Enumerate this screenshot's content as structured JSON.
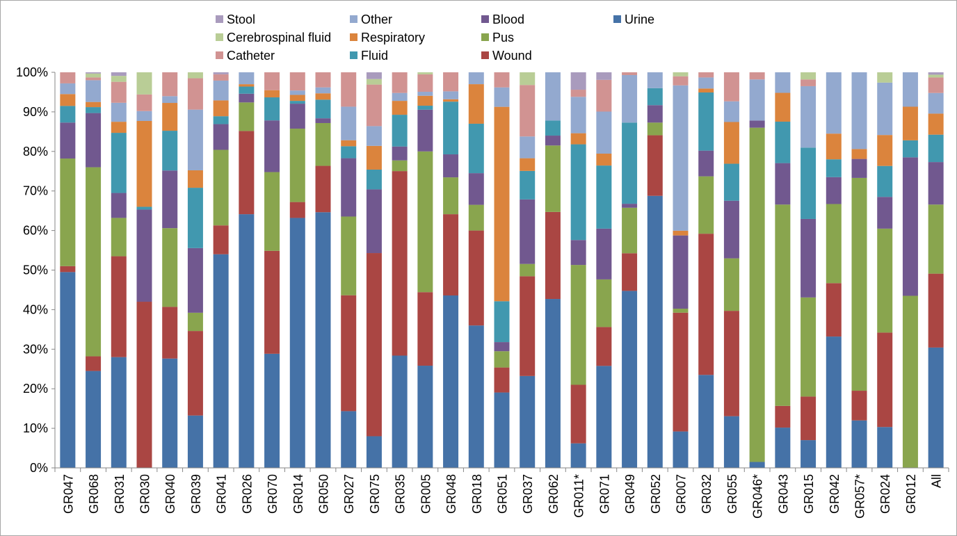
{
  "chart_data": {
    "type": "bar",
    "stacked": true,
    "normalized": true,
    "title": "",
    "xlabel": "",
    "ylabel": "",
    "ylim": [
      0,
      100
    ],
    "yticks": [
      "0%",
      "10%",
      "20%",
      "30%",
      "40%",
      "50%",
      "60%",
      "70%",
      "80%",
      "90%",
      "100%"
    ],
    "grid": false,
    "legend_position": "top",
    "categories": [
      "GR047",
      "GR068",
      "GR031",
      "GR030",
      "GR040",
      "GR039",
      "GR041",
      "GR026",
      "GR070",
      "GR014",
      "GR050",
      "GR027",
      "GR075",
      "GR035",
      "GR005",
      "GR048",
      "GR018",
      "GR051",
      "GR037",
      "GR062",
      "GR011*",
      "GR071",
      "GR049",
      "GR052",
      "GR007",
      "GR032",
      "GR055",
      "GR046*",
      "GR043",
      "GR015",
      "GR042",
      "GR057*",
      "GR024",
      "GR012",
      "All"
    ],
    "legend_order": [
      "Stool",
      "Cerebrospinal fluid",
      "Catheter",
      "Other",
      "Respiratory",
      "Fluid",
      "Blood",
      "Pus",
      "Wound",
      "Urine"
    ],
    "series": [
      {
        "name": "Urine",
        "color": "#4572a7",
        "values": [
          49.5,
          24.5,
          28,
          0,
          27.5,
          13.2,
          54,
          64,
          28.7,
          63,
          64.5,
          14.2,
          8,
          28.3,
          25.7,
          43.5,
          36,
          19,
          23.2,
          42.7,
          6.2,
          25.7,
          44.7,
          68.7,
          9.2,
          23.5,
          13,
          1.5,
          10.2,
          7,
          33.2,
          12,
          10.3,
          0,
          30.3
        ]
      },
      {
        "name": "Wound",
        "color": "#aa4643",
        "values": [
          1.5,
          3.7,
          25.5,
          42,
          13,
          21.3,
          7.3,
          21,
          25.9,
          4,
          11.7,
          29,
          46.3,
          46.5,
          18.5,
          20.5,
          24,
          6.3,
          25.2,
          22,
          14.8,
          9.8,
          9.5,
          15.3,
          30,
          35.7,
          26.5,
          0,
          5.5,
          11,
          13.5,
          7.5,
          23.8,
          0,
          18.6
        ]
      },
      {
        "name": "Pus",
        "color": "#89a54e",
        "values": [
          27.2,
          47.8,
          9.7,
          0,
          19.8,
          4.6,
          19.1,
          7.2,
          19.8,
          18.5,
          10.8,
          19.7,
          0,
          2.7,
          35.4,
          9.3,
          6.5,
          4.1,
          3.1,
          16.8,
          30.3,
          12,
          11.5,
          3.2,
          1,
          14.5,
          13.2,
          84.5,
          51,
          25,
          20,
          53.8,
          26.2,
          43.5,
          17.4
        ]
      },
      {
        "name": "Blood",
        "color": "#71588f",
        "values": [
          9.1,
          13.7,
          6.3,
          23.3,
          14.5,
          16.3,
          6.5,
          2.2,
          13,
          6.3,
          1.2,
          14.6,
          16.1,
          3.5,
          10.5,
          5.8,
          8,
          2.3,
          16.3,
          2.5,
          6.3,
          12.8,
          1,
          4.4,
          18.5,
          6.5,
          14.5,
          1.8,
          10.5,
          19.8,
          6.8,
          4.8,
          8,
          35,
          10.7
        ]
      },
      {
        "name": "Fluid",
        "color": "#4198af",
        "values": [
          4.2,
          1.5,
          15.2,
          0.7,
          10,
          15.2,
          2,
          1.8,
          5.8,
          0.7,
          4.7,
          3,
          5,
          8,
          1,
          13.3,
          12.5,
          10.3,
          7.2,
          3.8,
          24.2,
          15.9,
          20.5,
          4.3,
          0,
          14.7,
          9.3,
          0,
          10.5,
          18,
          4.5,
          0,
          7.8,
          4.3,
          6.9
        ]
      },
      {
        "name": "Respiratory",
        "color": "#db843d",
        "values": [
          3,
          1.3,
          2.8,
          21.7,
          7,
          4.4,
          4,
          0.6,
          1.8,
          1.5,
          1.6,
          1.5,
          6,
          3.5,
          2.5,
          0.6,
          10,
          49,
          3.2,
          0,
          2.8,
          3,
          0,
          0,
          1.2,
          1,
          10.5,
          0,
          7.3,
          0,
          6.5,
          2.5,
          7.8,
          8.5,
          5.3
        ]
      },
      {
        "name": "Other",
        "color": "#93a9cf",
        "values": [
          2.7,
          5.5,
          4.8,
          2.5,
          1.7,
          15.3,
          5,
          3,
          0,
          1.1,
          1.5,
          8.4,
          5,
          2,
          1,
          2,
          3,
          4.9,
          5.5,
          12.2,
          9.2,
          10.6,
          12,
          4,
          36.7,
          2.8,
          5.2,
          10.4,
          5.2,
          15.5,
          15.5,
          19.4,
          13.2,
          8.7,
          5.2
        ]
      },
      {
        "name": "Catheter",
        "color": "#d19392",
        "values": [
          2.8,
          0.7,
          5.3,
          4.2,
          6,
          7.9,
          1.6,
          0,
          4.5,
          4.6,
          3.8,
          8.6,
          10.5,
          5.2,
          4.4,
          4.8,
          0,
          3.8,
          13,
          0,
          1.8,
          8,
          0.7,
          0,
          2.3,
          1.3,
          7.3,
          1.8,
          0,
          1.7,
          0,
          0,
          0,
          0,
          3.9
        ]
      },
      {
        "name": "Cerebrospinal fluid",
        "color": "#b9cd96",
        "values": [
          0,
          1,
          1.5,
          5.6,
          0,
          1.5,
          0,
          0,
          0,
          0,
          0,
          0,
          1.4,
          0,
          0.5,
          0,
          0,
          0,
          3.2,
          0,
          0,
          0,
          0,
          0,
          1,
          0,
          0,
          0,
          0,
          1.8,
          0,
          0,
          2.6,
          0,
          0.7
        ]
      },
      {
        "name": "Stool",
        "color": "#a99bbd",
        "values": [
          0,
          0.3,
          0.9,
          0,
          0,
          0,
          0.5,
          0,
          0,
          0,
          0,
          0,
          1.7,
          0,
          0,
          0,
          0,
          0,
          0,
          0,
          4.4,
          1.9,
          0,
          0,
          0,
          0,
          0,
          0,
          0,
          0,
          0,
          0,
          0,
          0,
          0.6
        ]
      }
    ]
  }
}
